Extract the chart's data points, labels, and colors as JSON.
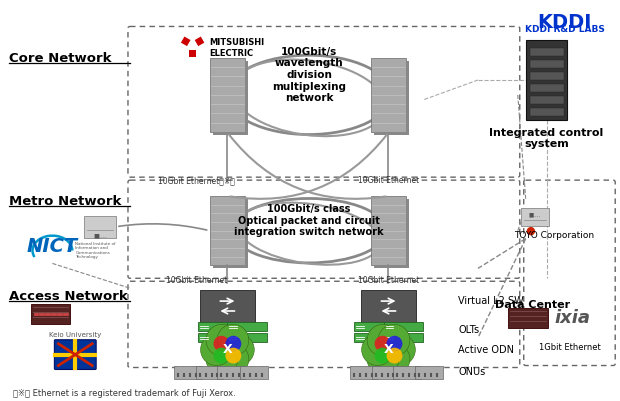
{
  "background_color": "#ffffff",
  "core_network_label": "Core Network",
  "metro_network_label": "Metro Network",
  "access_network_label": "Access Network",
  "data_center_label": "Data Center",
  "integrated_control_label": "Integrated control\nsystem",
  "kddi_label": "KDDI R&D LABS",
  "core_box_text": "100Gbit/s\nwavelength\ndivision\nmultiplexing\nnetwork",
  "metro_box_text": "100Gbit/s class\nOptical packet and circuit\nintegration switch network",
  "virtual_l2_label": "Virtual L2 SW",
  "olts_label": "OLTs",
  "active_odn_label": "Active ODN",
  "onus_label": "ONUs",
  "link_10gbit_left": "10Gbit Ethernet（※）",
  "link_10gbit_right": "10Gbit Ethernet",
  "link_10gbit_metro_left": "10Gbit Ethernet",
  "link_10gbit_metro_right": "10Gbit Ethernet",
  "link_1gbit": "1Gbit Ethernet",
  "footnote": "（※） Ethernet is a registered trademark of Fuji Xerox.",
  "toyo_label": "TOYO Corporation",
  "ixia_label": "ixia",
  "mitsubishi_label": "MITSUBISHI\nELECTRIC",
  "nict_label": "NICT",
  "keio_label": "Keio University"
}
